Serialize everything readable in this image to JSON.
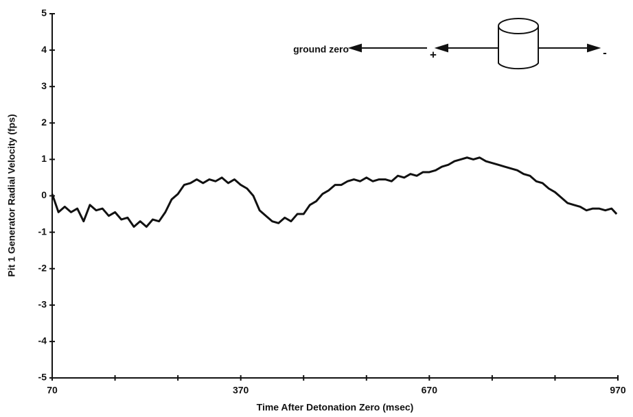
{
  "chart_data": {
    "type": "line",
    "xlabel": "Time After Detonation Zero (msec)",
    "ylabel": "Pit 1 Generator Radial Velocity (fps)",
    "annotations": [
      "ground zero",
      "+",
      "-"
    ],
    "x": [
      70,
      80,
      90,
      100,
      110,
      120,
      130,
      140,
      150,
      160,
      170,
      180,
      190,
      200,
      210,
      220,
      230,
      240,
      250,
      260,
      270,
      280,
      290,
      300,
      310,
      320,
      330,
      340,
      350,
      360,
      370,
      380,
      390,
      400,
      410,
      420,
      430,
      440,
      450,
      460,
      470,
      480,
      490,
      500,
      510,
      520,
      530,
      540,
      550,
      560,
      570,
      580,
      590,
      600,
      610,
      620,
      630,
      640,
      650,
      660,
      670,
      680,
      690,
      700,
      710,
      720,
      730,
      740,
      750,
      760,
      770,
      780,
      790,
      800,
      810,
      820,
      830,
      840,
      850,
      860,
      870,
      880,
      890,
      900,
      910,
      920,
      930,
      940,
      950,
      960,
      968
    ],
    "series": [
      {
        "color": "#111111",
        "values": [
          0.05,
          -0.45,
          -0.3,
          -0.45,
          -0.35,
          -0.7,
          -0.25,
          -0.4,
          -0.35,
          -0.55,
          -0.45,
          -0.65,
          -0.6,
          -0.85,
          -0.7,
          -0.85,
          -0.65,
          -0.7,
          -0.45,
          -0.1,
          0.05,
          0.3,
          0.35,
          0.45,
          0.35,
          0.45,
          0.4,
          0.5,
          0.35,
          0.45,
          0.3,
          0.2,
          0.0,
          -0.4,
          -0.55,
          -0.7,
          -0.75,
          -0.6,
          -0.7,
          -0.5,
          -0.5,
          -0.25,
          -0.15,
          0.05,
          0.15,
          0.3,
          0.3,
          0.4,
          0.45,
          0.4,
          0.5,
          0.4,
          0.45,
          0.45,
          0.4,
          0.55,
          0.5,
          0.6,
          0.55,
          0.65,
          0.65,
          0.7,
          0.8,
          0.85,
          0.95,
          1.0,
          1.05,
          1.0,
          1.05,
          0.95,
          0.9,
          0.85,
          0.8,
          0.75,
          0.7,
          0.6,
          0.55,
          0.4,
          0.35,
          0.2,
          0.1,
          -0.05,
          -0.2,
          -0.25,
          -0.3,
          -0.4,
          -0.35,
          -0.35,
          -0.4,
          -0.35,
          -0.5
        ]
      }
    ],
    "xlim": [
      70,
      970
    ],
    "xticks": [
      70,
      370,
      670,
      970
    ],
    "xminorticks": [
      170,
      270,
      470,
      570,
      770,
      870
    ],
    "ylim": [
      -5,
      5
    ],
    "yticks": [
      -5,
      -4,
      -3,
      -2,
      -1,
      0,
      1,
      2,
      3,
      4,
      5
    ],
    "grid": false
  }
}
